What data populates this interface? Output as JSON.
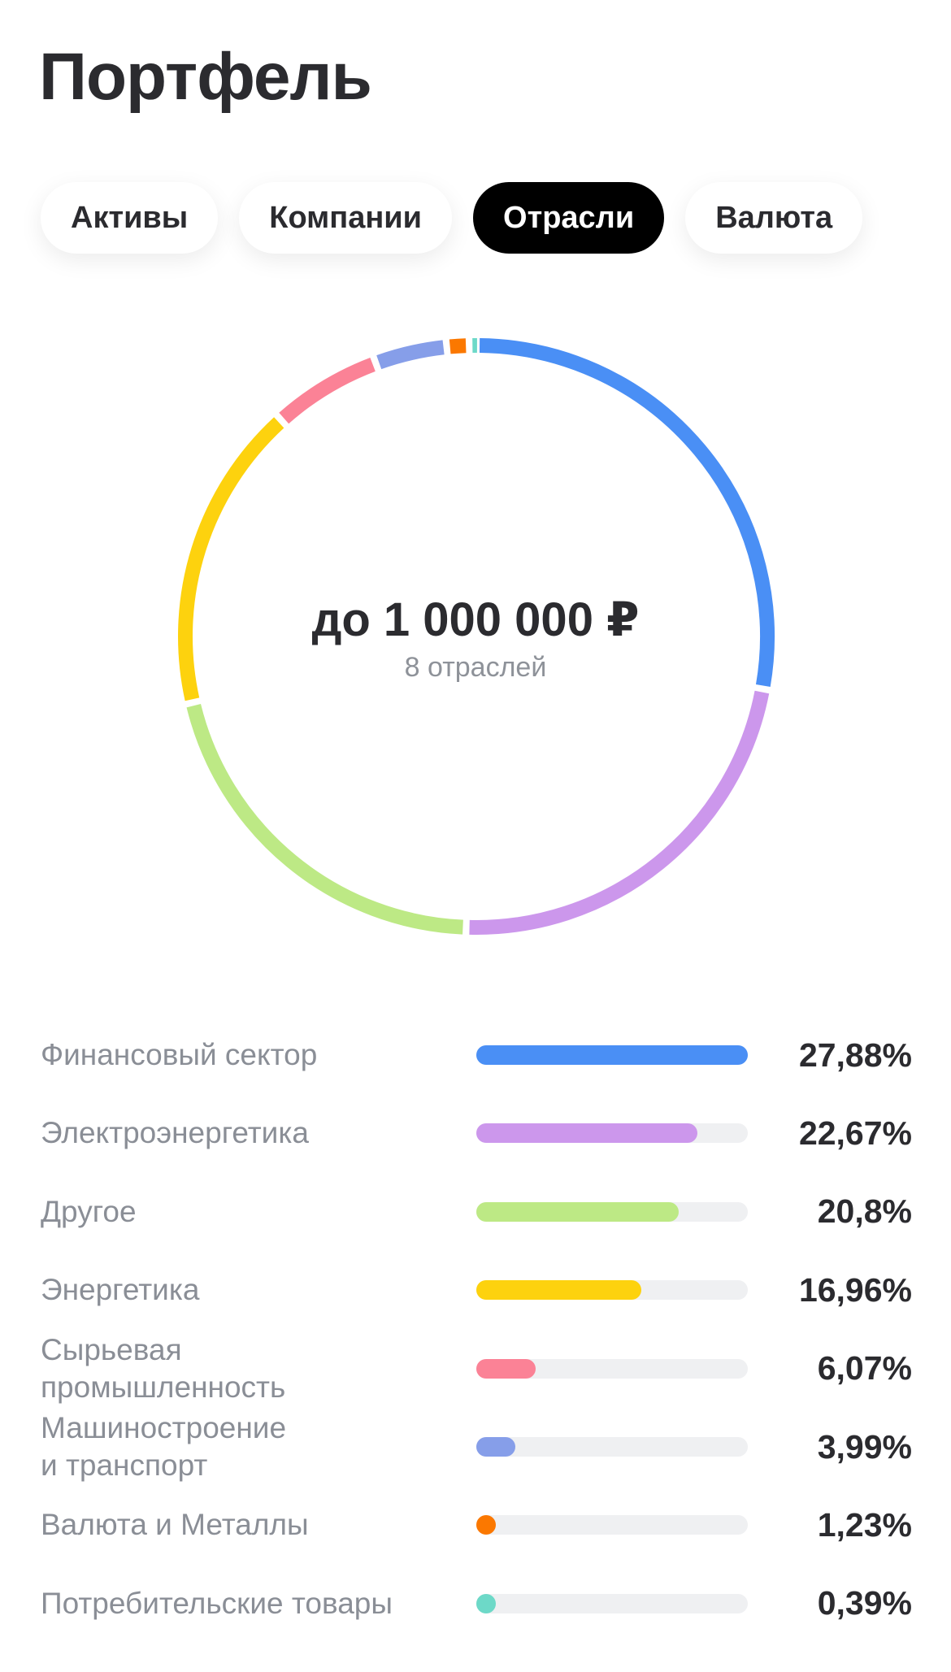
{
  "header": {
    "title": "Портфель"
  },
  "tabs": [
    {
      "label": "Активы",
      "active": false
    },
    {
      "label": "Компании",
      "active": false
    },
    {
      "label": "Отрасли",
      "active": true
    },
    {
      "label": "Валюта",
      "active": false
    }
  ],
  "summary": {
    "amount": "до 1 000 000 ₽",
    "caption": "8 отраслей"
  },
  "sectors": [
    {
      "name": "Финансовый сектор",
      "value": 27.88,
      "label": "27,88%",
      "color": "#4a8ff5"
    },
    {
      "name": "Электроэнергетика",
      "value": 22.67,
      "label": "22,67%",
      "color": "#cc97ec"
    },
    {
      "name": "Другое",
      "value": 20.8,
      "label": "20,8%",
      "color": "#bde985"
    },
    {
      "name": "Энергетика",
      "value": 16.96,
      "label": "16,96%",
      "color": "#fdd20e"
    },
    {
      "name": "Сырьевая\nпромышленность",
      "value": 6.07,
      "label": "6,07%",
      "color": "#fb8296"
    },
    {
      "name": "Машиностроение\nи транспорт",
      "value": 3.99,
      "label": "3,99%",
      "color": "#869ee9"
    },
    {
      "name": "Валюта и Металлы",
      "value": 1.23,
      "label": "1,23%",
      "color": "#fb7800"
    },
    {
      "name": "Потребительские товары",
      "value": 0.39,
      "label": "0,39%",
      "color": "#6dd9c8"
    }
  ]
}
